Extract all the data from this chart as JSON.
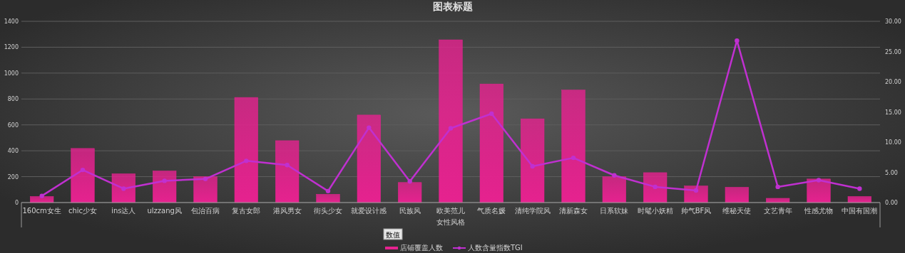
{
  "chart_data": {
    "type": "bar",
    "title": "图表标题",
    "xlabel": "女性风格",
    "categories": [
      "160cm女生",
      "chic少女",
      "ins达人",
      "ulzzang风",
      "包治百病",
      "复古女郎",
      "港风男女",
      "街头少女",
      "就爱设计感",
      "民族风",
      "欧美范儿",
      "气质名媛",
      "清纯学院风",
      "清新森女",
      "日系软妹",
      "时髦小妖精",
      "帅气BF风",
      "维秘天使",
      "文艺青年",
      "性感尤物",
      "中国有国潮"
    ],
    "series": [
      {
        "name": "店铺覆盖人数",
        "color": "#e6228f",
        "values": [
          47,
          418,
          222,
          244,
          200,
          812,
          478,
          64,
          676,
          155,
          1257,
          916,
          647,
          869,
          200,
          231,
          128,
          118,
          33,
          182,
          47
        ]
      },
      {
        "name": "人数含量指数TGI",
        "type": "line",
        "axis": "y2",
        "color": "#c030d0",
        "values": [
          1.1,
          5.4,
          2.3,
          3.6,
          3.9,
          6.9,
          6.2,
          1.9,
          12.4,
          3.5,
          12.3,
          14.7,
          6.0,
          7.4,
          4.5,
          2.6,
          2.0,
          26.8,
          2.6,
          3.7,
          2.3
        ]
      }
    ],
    "ylim": [
      0,
      1400
    ],
    "yticks": [
      0,
      200,
      400,
      600,
      800,
      1000,
      1200,
      1400
    ],
    "y2lim": [
      0,
      30
    ],
    "y2ticks": [
      {
        "value": 0,
        "label": "0.00"
      },
      {
        "value": 5,
        "label": "5.00"
      },
      {
        "value": 10,
        "label": "10.00"
      },
      {
        "value": 15,
        "label": "15.00"
      },
      {
        "value": 20,
        "label": "20.00"
      },
      {
        "value": 25,
        "label": "25.00"
      },
      {
        "value": 30,
        "label": "30.00"
      }
    ],
    "grid": "y",
    "legend": "bottom",
    "marker": "circle",
    "line_style": "solid",
    "annotations": [
      "数值"
    ]
  }
}
